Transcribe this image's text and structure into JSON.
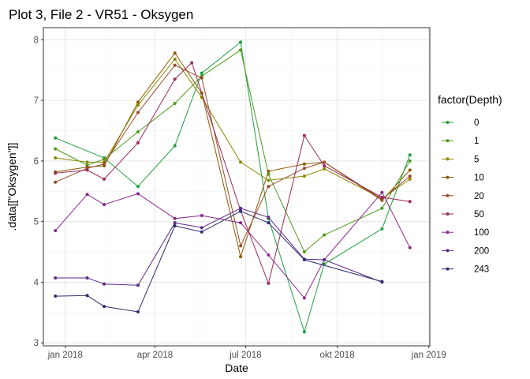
{
  "chart_data": {
    "type": "line",
    "title": "Plot 3, File 2 - VR51  -  Oksygen",
    "xlabel": "Date",
    "ylabel": ".data[[\"Oksygen\"]]",
    "x_type": "date",
    "xlim": [
      "2017-12-10",
      "2019-01-02"
    ],
    "ylim": [
      2.95,
      8.2
    ],
    "x_ticks": [
      {
        "date": "2018-01-01",
        "label": "jan 2018"
      },
      {
        "date": "2018-04-01",
        "label": "apr 2018"
      },
      {
        "date": "2018-07-01",
        "label": "jul 2018"
      },
      {
        "date": "2018-10-01",
        "label": "okt 2018"
      },
      {
        "date": "2019-01-01",
        "label": "jan 2019"
      }
    ],
    "y_ticks": [
      3,
      4,
      5,
      6,
      7,
      8
    ],
    "grid": true,
    "legend_title": "factor(Depth)",
    "legend_position": "right",
    "series": [
      {
        "name": "0",
        "color": "#1E9E3E",
        "points": [
          {
            "x": "2017-12-22",
            "y": 6.38
          },
          {
            "x": "2018-02-09",
            "y": 6.05
          },
          {
            "x": "2018-03-15",
            "y": 5.58
          },
          {
            "x": "2018-04-21",
            "y": 6.25
          },
          {
            "x": "2018-05-18",
            "y": 7.45
          },
          {
            "x": "2018-06-26",
            "y": 7.96
          },
          {
            "x": "2018-07-24",
            "y": 5.05
          },
          {
            "x": "2018-08-29",
            "y": 3.18
          },
          {
            "x": "2018-09-18",
            "y": 4.3
          },
          {
            "x": "2018-11-15",
            "y": 4.88
          },
          {
            "x": "2018-12-13",
            "y": 6.1
          }
        ]
      },
      {
        "name": "1",
        "color": "#4E9A1E",
        "points": [
          {
            "x": "2017-12-22",
            "y": 6.2
          },
          {
            "x": "2018-01-23",
            "y": 5.93
          },
          {
            "x": "2018-02-09",
            "y": 6.03
          },
          {
            "x": "2018-03-15",
            "y": 6.48
          },
          {
            "x": "2018-04-21",
            "y": 6.95
          },
          {
            "x": "2018-05-18",
            "y": 7.4
          },
          {
            "x": "2018-06-26",
            "y": 7.83
          },
          {
            "x": "2018-07-24",
            "y": 5.78
          },
          {
            "x": "2018-08-29",
            "y": 4.5
          },
          {
            "x": "2018-09-18",
            "y": 4.78
          },
          {
            "x": "2018-11-15",
            "y": 5.22
          },
          {
            "x": "2018-12-13",
            "y": 6.0
          }
        ]
      },
      {
        "name": "5",
        "color": "#8A8A00",
        "points": [
          {
            "x": "2017-12-22",
            "y": 6.05
          },
          {
            "x": "2018-01-23",
            "y": 5.98
          },
          {
            "x": "2018-02-09",
            "y": 5.98
          },
          {
            "x": "2018-03-15",
            "y": 6.92
          },
          {
            "x": "2018-04-21",
            "y": 7.68
          },
          {
            "x": "2018-05-18",
            "y": 7.05
          },
          {
            "x": "2018-06-26",
            "y": 5.98
          },
          {
            "x": "2018-07-24",
            "y": 5.68
          },
          {
            "x": "2018-08-29",
            "y": 5.75
          },
          {
            "x": "2018-09-18",
            "y": 5.87
          },
          {
            "x": "2018-11-15",
            "y": 5.38
          },
          {
            "x": "2018-12-13",
            "y": 5.7
          }
        ]
      },
      {
        "name": "10",
        "color": "#8A5A00",
        "points": [
          {
            "x": "2017-12-22",
            "y": 5.82
          },
          {
            "x": "2018-01-23",
            "y": 5.9
          },
          {
            "x": "2018-02-09",
            "y": 5.92
          },
          {
            "x": "2018-03-15",
            "y": 6.97
          },
          {
            "x": "2018-04-21",
            "y": 7.78
          },
          {
            "x": "2018-05-18",
            "y": 7.12
          },
          {
            "x": "2018-06-26",
            "y": 4.42
          },
          {
            "x": "2018-07-24",
            "y": 5.83
          },
          {
            "x": "2018-08-29",
            "y": 5.95
          },
          {
            "x": "2018-09-18",
            "y": 5.98
          },
          {
            "x": "2018-11-15",
            "y": 5.35
          },
          {
            "x": "2018-12-13",
            "y": 5.85
          }
        ]
      },
      {
        "name": "20",
        "color": "#9A4A2A",
        "points": [
          {
            "x": "2017-12-22",
            "y": 5.65
          },
          {
            "x": "2018-01-23",
            "y": 5.88
          },
          {
            "x": "2018-02-09",
            "y": 5.95
          },
          {
            "x": "2018-03-15",
            "y": 6.8
          },
          {
            "x": "2018-04-21",
            "y": 7.58
          },
          {
            "x": "2018-05-18",
            "y": 7.37
          },
          {
            "x": "2018-06-26",
            "y": 4.6
          },
          {
            "x": "2018-07-24",
            "y": 5.58
          },
          {
            "x": "2018-08-29",
            "y": 5.88
          },
          {
            "x": "2018-09-18",
            "y": 5.98
          },
          {
            "x": "2018-11-15",
            "y": 5.37
          },
          {
            "x": "2018-12-13",
            "y": 5.75
          }
        ]
      },
      {
        "name": "50",
        "color": "#9A2A5A",
        "points": [
          {
            "x": "2017-12-22",
            "y": 5.8
          },
          {
            "x": "2018-01-23",
            "y": 5.85
          },
          {
            "x": "2018-02-09",
            "y": 5.7
          },
          {
            "x": "2018-03-15",
            "y": 6.3
          },
          {
            "x": "2018-04-21",
            "y": 7.35
          },
          {
            "x": "2018-05-08",
            "y": 7.62
          },
          {
            "x": "2018-06-26",
            "y": 5.18
          },
          {
            "x": "2018-07-24",
            "y": 3.98
          },
          {
            "x": "2018-08-29",
            "y": 6.42
          },
          {
            "x": "2018-09-18",
            "y": 5.92
          },
          {
            "x": "2018-11-15",
            "y": 5.4
          },
          {
            "x": "2018-12-13",
            "y": 5.33
          }
        ]
      },
      {
        "name": "100",
        "color": "#8A2A8A",
        "points": [
          {
            "x": "2017-12-22",
            "y": 4.85
          },
          {
            "x": "2018-01-23",
            "y": 5.45
          },
          {
            "x": "2018-02-09",
            "y": 5.28
          },
          {
            "x": "2018-03-15",
            "y": 5.46
          },
          {
            "x": "2018-04-21",
            "y": 5.05
          },
          {
            "x": "2018-05-18",
            "y": 5.1
          },
          {
            "x": "2018-06-26",
            "y": 4.98
          },
          {
            "x": "2018-07-24",
            "y": 4.45
          },
          {
            "x": "2018-08-29",
            "y": 3.74
          },
          {
            "x": "2018-09-18",
            "y": 4.37
          },
          {
            "x": "2018-11-15",
            "y": 5.48
          },
          {
            "x": "2018-12-13",
            "y": 4.57
          }
        ]
      },
      {
        "name": "200",
        "color": "#5A2A8A",
        "points": [
          {
            "x": "2017-12-22",
            "y": 4.07
          },
          {
            "x": "2018-01-23",
            "y": 4.07
          },
          {
            "x": "2018-02-09",
            "y": 3.97
          },
          {
            "x": "2018-03-15",
            "y": 3.95
          },
          {
            "x": "2018-04-21",
            "y": 4.98
          },
          {
            "x": "2018-05-18",
            "y": 4.9
          },
          {
            "x": "2018-06-26",
            "y": 5.22
          },
          {
            "x": "2018-07-24",
            "y": 5.07
          },
          {
            "x": "2018-08-29",
            "y": 4.38
          },
          {
            "x": "2018-09-18",
            "y": 4.37
          },
          {
            "x": "2018-11-15",
            "y": 4.0
          }
        ]
      },
      {
        "name": "243",
        "color": "#2E2E6E",
        "points": [
          {
            "x": "2017-12-22",
            "y": 3.77
          },
          {
            "x": "2018-01-23",
            "y": 3.78
          },
          {
            "x": "2018-02-09",
            "y": 3.6
          },
          {
            "x": "2018-03-15",
            "y": 3.51
          },
          {
            "x": "2018-04-21",
            "y": 4.93
          },
          {
            "x": "2018-05-18",
            "y": 4.83
          },
          {
            "x": "2018-06-26",
            "y": 5.17
          },
          {
            "x": "2018-07-24",
            "y": 4.98
          },
          {
            "x": "2018-08-29",
            "y": 4.37
          },
          {
            "x": "2018-11-15",
            "y": 4.01
          }
        ]
      }
    ]
  }
}
